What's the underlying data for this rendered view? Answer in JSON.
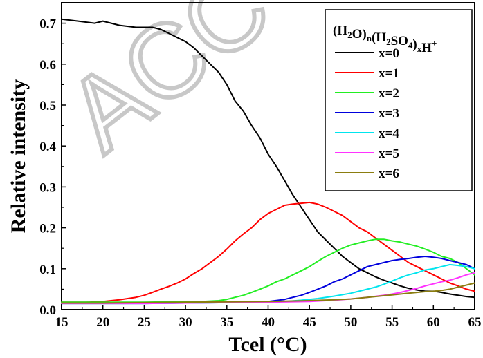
{
  "watermark": {
    "text": "ACC"
  },
  "chart_data": {
    "type": "line",
    "title": "",
    "xlabel": "Tcel (°C)",
    "ylabel": "Relative intensity",
    "xlim": [
      15,
      65
    ],
    "ylim": [
      0,
      0.75
    ],
    "xticks": [
      15,
      20,
      25,
      30,
      35,
      40,
      45,
      50,
      55,
      60,
      65
    ],
    "yticks": [
      0.0,
      0.1,
      0.2,
      0.3,
      0.4,
      0.5,
      0.6,
      0.7
    ],
    "xtick_labels": [
      "15",
      "20",
      "25",
      "30",
      "35",
      "40",
      "45",
      "50",
      "55",
      "60",
      "65"
    ],
    "ytick_labels": [
      "0.0",
      "0.1",
      "0.2",
      "0.3",
      "0.4",
      "0.5",
      "0.6",
      "0.7"
    ],
    "grid": false,
    "legend": {
      "placement": "top-right",
      "title_parts": [
        {
          "text": "(H",
          "sub": false
        },
        {
          "text": "2",
          "sub": true
        },
        {
          "text": "O)",
          "sub": false
        },
        {
          "text": "n",
          "sub": true
        },
        {
          "text": "(H",
          "sub": false
        },
        {
          "text": "2",
          "sub": true
        },
        {
          "text": "SO",
          "sub": false
        },
        {
          "text": "4",
          "sub": true
        },
        {
          "text": ")",
          "sub": false
        },
        {
          "text": "x",
          "sub": true
        },
        {
          "text": "H",
          "sub": false
        },
        {
          "text": "+",
          "sup": true
        }
      ]
    },
    "series": [
      {
        "name": "x=0",
        "color": "#000000",
        "x": [
          15,
          17,
          19,
          20,
          22,
          24,
          26,
          27,
          28,
          29,
          30,
          31,
          32,
          33,
          34,
          35,
          36,
          37,
          38,
          39,
          40,
          41,
          42,
          43,
          44,
          45,
          46,
          47,
          48,
          49,
          50,
          51,
          52,
          53,
          54,
          55,
          56,
          57,
          58,
          59,
          60,
          61,
          62,
          63,
          64,
          65
        ],
        "y": [
          0.71,
          0.705,
          0.7,
          0.705,
          0.695,
          0.69,
          0.69,
          0.685,
          0.675,
          0.665,
          0.655,
          0.64,
          0.62,
          0.6,
          0.58,
          0.55,
          0.51,
          0.485,
          0.45,
          0.42,
          0.38,
          0.35,
          0.315,
          0.28,
          0.25,
          0.22,
          0.19,
          0.17,
          0.15,
          0.13,
          0.115,
          0.1,
          0.09,
          0.08,
          0.072,
          0.065,
          0.058,
          0.052,
          0.048,
          0.045,
          0.045,
          0.042,
          0.038,
          0.035,
          0.032,
          0.03
        ]
      },
      {
        "name": "x=1",
        "color": "#ff0000",
        "x": [
          15,
          18,
          20,
          22,
          24,
          25,
          26,
          27,
          28,
          29,
          30,
          31,
          32,
          33,
          34,
          35,
          36,
          37,
          38,
          39,
          40,
          41,
          42,
          43,
          44,
          45,
          46,
          47,
          48,
          49,
          50,
          51,
          52,
          53,
          54,
          55,
          56,
          57,
          58,
          59,
          60,
          61,
          62,
          63,
          64,
          65
        ],
        "y": [
          0.018,
          0.018,
          0.02,
          0.024,
          0.03,
          0.035,
          0.042,
          0.05,
          0.057,
          0.065,
          0.075,
          0.088,
          0.1,
          0.115,
          0.13,
          0.148,
          0.168,
          0.185,
          0.2,
          0.22,
          0.235,
          0.245,
          0.255,
          0.258,
          0.26,
          0.262,
          0.258,
          0.25,
          0.24,
          0.23,
          0.215,
          0.2,
          0.19,
          0.175,
          0.16,
          0.145,
          0.13,
          0.115,
          0.105,
          0.095,
          0.085,
          0.075,
          0.065,
          0.058,
          0.05,
          0.045
        ]
      },
      {
        "name": "x=2",
        "color": "#22ee22",
        "x": [
          15,
          20,
          25,
          30,
          32,
          34,
          35,
          36,
          37,
          38,
          39,
          40,
          41,
          42,
          43,
          44,
          45,
          46,
          47,
          48,
          49,
          50,
          51,
          52,
          53,
          54,
          55,
          56,
          57,
          58,
          59,
          60,
          61,
          62,
          63,
          64,
          65
        ],
        "y": [
          0.018,
          0.018,
          0.018,
          0.02,
          0.02,
          0.022,
          0.025,
          0.03,
          0.035,
          0.042,
          0.05,
          0.058,
          0.068,
          0.075,
          0.085,
          0.095,
          0.105,
          0.118,
          0.13,
          0.14,
          0.15,
          0.158,
          0.163,
          0.168,
          0.172,
          0.172,
          0.168,
          0.165,
          0.16,
          0.155,
          0.148,
          0.14,
          0.13,
          0.125,
          0.115,
          0.1,
          0.085
        ]
      },
      {
        "name": "x=3",
        "color": "#0000dd",
        "x": [
          15,
          20,
          25,
          30,
          35,
          38,
          40,
          42,
          43,
          44,
          45,
          46,
          47,
          48,
          49,
          50,
          51,
          52,
          53,
          54,
          55,
          56,
          57,
          58,
          59,
          60,
          61,
          62,
          63,
          64,
          65
        ],
        "y": [
          0.015,
          0.015,
          0.015,
          0.016,
          0.017,
          0.018,
          0.02,
          0.025,
          0.03,
          0.035,
          0.042,
          0.05,
          0.058,
          0.068,
          0.075,
          0.085,
          0.095,
          0.105,
          0.11,
          0.115,
          0.12,
          0.123,
          0.125,
          0.128,
          0.13,
          0.128,
          0.125,
          0.12,
          0.115,
          0.11,
          0.1
        ]
      },
      {
        "name": "x=4",
        "color": "#00e5ee",
        "x": [
          15,
          20,
          25,
          30,
          35,
          40,
          42,
          44,
          46,
          48,
          50,
          51,
          52,
          53,
          54,
          55,
          56,
          57,
          58,
          59,
          60,
          61,
          62,
          63,
          64,
          65
        ],
        "y": [
          0.015,
          0.015,
          0.015,
          0.016,
          0.017,
          0.018,
          0.02,
          0.023,
          0.027,
          0.033,
          0.04,
          0.045,
          0.05,
          0.055,
          0.062,
          0.07,
          0.078,
          0.085,
          0.09,
          0.097,
          0.1,
          0.105,
          0.11,
          0.108,
          0.105,
          0.1
        ]
      },
      {
        "name": "x=5",
        "color": "#ff33ff",
        "x": [
          15,
          20,
          25,
          30,
          35,
          40,
          45,
          48,
          50,
          52,
          54,
          55,
          56,
          57,
          58,
          59,
          60,
          61,
          62,
          63,
          64,
          65
        ],
        "y": [
          0.015,
          0.015,
          0.015,
          0.016,
          0.017,
          0.018,
          0.02,
          0.023,
          0.026,
          0.03,
          0.035,
          0.038,
          0.042,
          0.047,
          0.052,
          0.058,
          0.063,
          0.068,
          0.072,
          0.078,
          0.085,
          0.09
        ]
      },
      {
        "name": "x=6",
        "color": "#8b7d10",
        "x": [
          15,
          20,
          25,
          30,
          35,
          40,
          45,
          48,
          50,
          52,
          54,
          55,
          56,
          57,
          58,
          59,
          60,
          61,
          62,
          63,
          64,
          65
        ],
        "y": [
          0.016,
          0.016,
          0.017,
          0.018,
          0.019,
          0.02,
          0.022,
          0.024,
          0.026,
          0.03,
          0.034,
          0.036,
          0.038,
          0.04,
          0.042,
          0.044,
          0.045,
          0.047,
          0.05,
          0.055,
          0.06,
          0.065
        ]
      }
    ]
  }
}
